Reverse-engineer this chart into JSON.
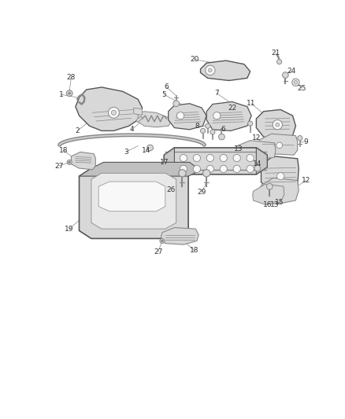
{
  "bg_color": "#ffffff",
  "fig_width": 4.38,
  "fig_height": 5.33,
  "dpi": 100,
  "line_color": "#555555",
  "gray_fill": "#d8d8d8",
  "dark_gray": "#888888",
  "white_fill": "#f8f8f8",
  "label_fontsize": 6.5
}
